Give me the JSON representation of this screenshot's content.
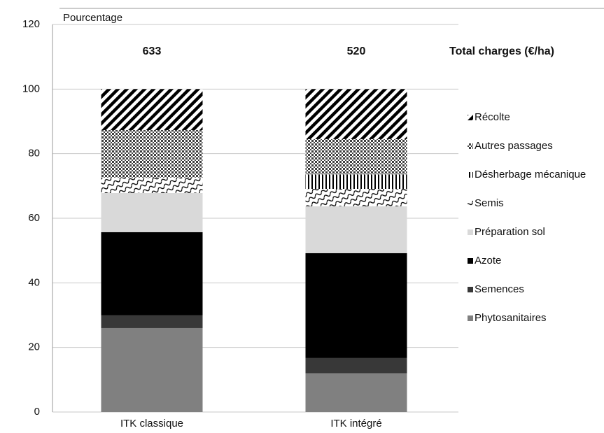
{
  "chart_data": {
    "type": "stacked-bar",
    "y_label": "Pourcentage",
    "categories": [
      "ITK classique",
      "ITK intégré"
    ],
    "totals": {
      "label": "Total charges (€/ha)",
      "values": [
        633,
        520
      ]
    },
    "ylim": [
      0,
      120
    ],
    "yticks": [
      0,
      20,
      40,
      60,
      80,
      100,
      120
    ],
    "grid": true,
    "series": [
      {
        "name": "Phytosanitaires",
        "color": "#808080",
        "pattern": "solid",
        "values": [
          26.0,
          12.0
        ]
      },
      {
        "name": "Semences",
        "color": "#383838",
        "pattern": "solid",
        "values": [
          4.0,
          4.7
        ]
      },
      {
        "name": "Azote",
        "color": "#000000",
        "pattern": "solid",
        "values": [
          25.7,
          32.5
        ]
      },
      {
        "name": "Préparation sol",
        "color": "#d9d9d9",
        "pattern": "solid",
        "values": [
          12.1,
          14.5
        ]
      },
      {
        "name": "Semis",
        "color": "#000000",
        "pattern": "waves",
        "values": [
          4.8,
          5.4
        ]
      },
      {
        "name": "Désherbage mécanique",
        "color": "#000000",
        "pattern": "vertical",
        "values": [
          0,
          4.5
        ]
      },
      {
        "name": "Autres passages",
        "color": "#404040",
        "pattern": "crosshatch",
        "values": [
          14.7,
          10.9
        ]
      },
      {
        "name": "Récolte",
        "color": "#000000",
        "pattern": "diagonal",
        "values": [
          12.7,
          15.5
        ]
      }
    ]
  }
}
